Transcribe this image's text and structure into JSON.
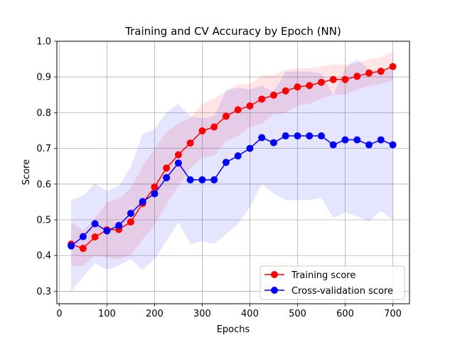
{
  "chart_data": {
    "type": "line",
    "title": "Training and CV Accuracy by Epoch (NN)",
    "xlabel": "Epochs",
    "ylabel": "Score",
    "xlim": [
      -5,
      735
    ],
    "ylim": [
      0.265,
      1.0
    ],
    "xticks": [
      0,
      100,
      200,
      300,
      400,
      500,
      600,
      700
    ],
    "yticks": [
      0.3,
      0.4,
      0.5,
      0.6,
      0.7,
      0.8,
      0.9,
      1.0
    ],
    "grid": true,
    "legend_position": "lower-right",
    "x": [
      25,
      50,
      75,
      100,
      125,
      150,
      175,
      200,
      225,
      250,
      275,
      300,
      325,
      350,
      375,
      400,
      425,
      450,
      475,
      500,
      525,
      550,
      575,
      600,
      625,
      650,
      675,
      700
    ],
    "series": [
      {
        "name": "Training score",
        "color": "#ff0000",
        "band_color": "#ff0000",
        "values": [
          0.432,
          0.42,
          0.452,
          0.472,
          0.473,
          0.494,
          0.546,
          0.592,
          0.645,
          0.682,
          0.715,
          0.749,
          0.76,
          0.79,
          0.808,
          0.819,
          0.838,
          0.849,
          0.861,
          0.872,
          0.876,
          0.885,
          0.893,
          0.893,
          0.902,
          0.911,
          0.916,
          0.929
        ],
        "band_upper": [
          0.495,
          0.47,
          0.505,
          0.55,
          0.558,
          0.59,
          0.65,
          0.7,
          0.745,
          0.77,
          0.785,
          0.825,
          0.84,
          0.86,
          0.88,
          0.88,
          0.905,
          0.905,
          0.92,
          0.925,
          0.925,
          0.93,
          0.935,
          0.935,
          0.94,
          0.95,
          0.955,
          0.97
        ],
        "band_lower": [
          0.37,
          0.37,
          0.4,
          0.395,
          0.39,
          0.4,
          0.445,
          0.485,
          0.545,
          0.595,
          0.645,
          0.675,
          0.68,
          0.72,
          0.735,
          0.76,
          0.77,
          0.795,
          0.8,
          0.82,
          0.825,
          0.84,
          0.85,
          0.85,
          0.865,
          0.875,
          0.88,
          0.89
        ]
      },
      {
        "name": "Cross-validation score",
        "color": "#0000ff",
        "band_color": "#0000ff",
        "values": [
          0.427,
          0.453,
          0.489,
          0.469,
          0.484,
          0.518,
          0.551,
          0.573,
          0.618,
          0.659,
          0.612,
          0.612,
          0.612,
          0.661,
          0.679,
          0.7,
          0.73,
          0.716,
          0.735,
          0.735,
          0.735,
          0.735,
          0.71,
          0.724,
          0.724,
          0.71,
          0.724,
          0.71
        ],
        "band_upper": [
          0.555,
          0.568,
          0.602,
          0.58,
          0.595,
          0.648,
          0.74,
          0.755,
          0.8,
          0.825,
          0.79,
          0.785,
          0.79,
          0.862,
          0.87,
          0.865,
          0.875,
          0.86,
          0.915,
          0.915,
          0.915,
          0.91,
          0.85,
          0.925,
          0.95,
          0.92,
          0.92,
          0.92
        ],
        "band_lower": [
          0.3,
          0.34,
          0.378,
          0.36,
          0.372,
          0.39,
          0.36,
          0.39,
          0.44,
          0.493,
          0.432,
          0.44,
          0.433,
          0.46,
          0.488,
          0.535,
          0.6,
          0.573,
          0.555,
          0.555,
          0.555,
          0.56,
          0.505,
          0.521,
          0.51,
          0.495,
          0.525,
          0.5
        ]
      }
    ]
  }
}
